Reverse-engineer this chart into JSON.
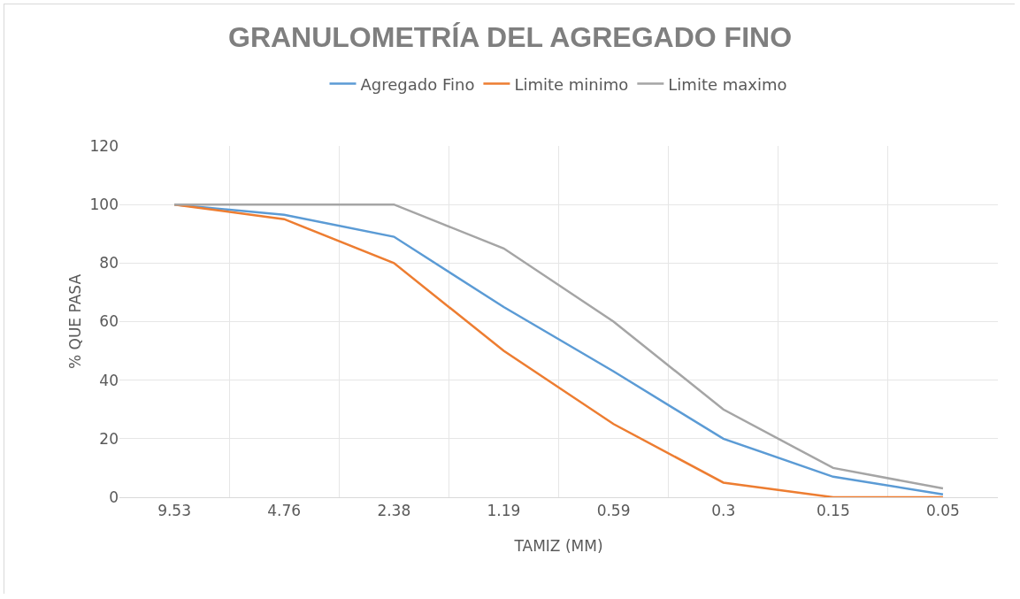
{
  "chart_data": {
    "type": "line",
    "title": "GRANULOMETRÍA DEL AGREGADO FINO",
    "xlabel": "TAMIZ (MM)",
    "ylabel": "% QUE PASA",
    "categories": [
      "9.53",
      "4.76",
      "2.38",
      "1.19",
      "0.59",
      "0.3",
      "0.15",
      "0.05"
    ],
    "series": [
      {
        "name": "Agregado Fino",
        "color": "#5b9bd5",
        "values": [
          100,
          96.5,
          89,
          65,
          43,
          20,
          7,
          1
        ]
      },
      {
        "name": "Limite minimo",
        "color": "#ed7d31",
        "values": [
          100,
          95,
          80,
          50,
          25,
          5,
          0,
          0
        ]
      },
      {
        "name": "Limite maximo",
        "color": "#a5a5a5",
        "values": [
          100,
          100,
          100,
          85,
          60,
          30,
          10,
          3
        ]
      }
    ],
    "ylim": [
      0,
      120
    ],
    "yticks": [
      0,
      20,
      40,
      60,
      80,
      100,
      120
    ],
    "grid": true,
    "legend": "top",
    "marker": "none",
    "line_style": "solid"
  }
}
